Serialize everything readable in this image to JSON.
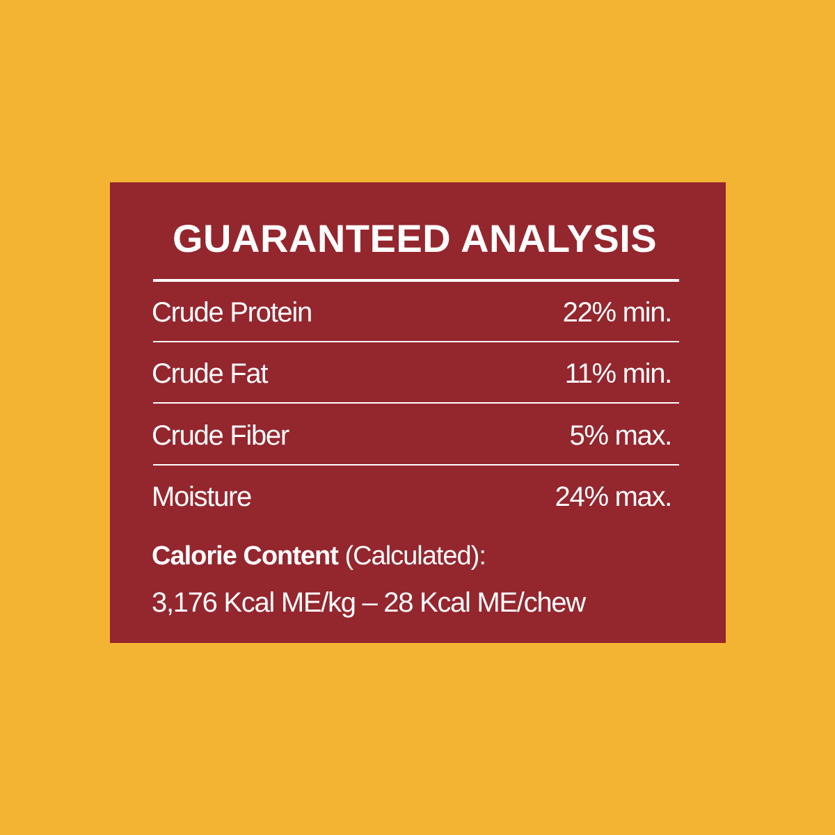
{
  "colors": {
    "background": "#F3B333",
    "panel": "#94262E",
    "text": "#FFFFFF"
  },
  "title": "GUARANTEED ANALYSIS",
  "rows": [
    {
      "label": "Crude Protein",
      "value": "22% min."
    },
    {
      "label": "Crude Fat",
      "value": "11% min."
    },
    {
      "label": "Crude Fiber",
      "value": "5% max."
    },
    {
      "label": "Moisture",
      "value": "24% max."
    }
  ],
  "calorie": {
    "label_bold": "Calorie Content",
    "label_rest": " (Calculated):",
    "value": "3,176 Kcal ME/kg – 28 Kcal ME/chew"
  }
}
